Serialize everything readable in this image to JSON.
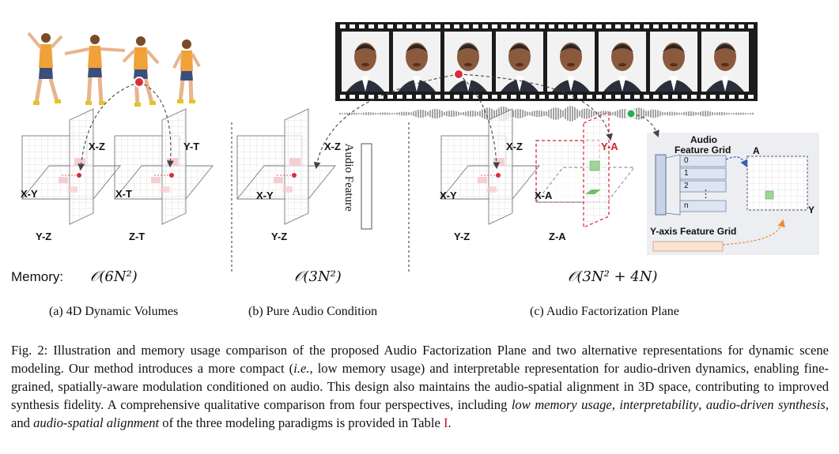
{
  "panels": {
    "a": {
      "caption": "(a) 4D Dynamic Volumes",
      "memory_label": "Memory:",
      "memory_formula": "𝒪(6N²)",
      "plane_labels": [
        "X-Z",
        "X-Y",
        "Y-Z",
        "Y-T",
        "X-T",
        "Z-T"
      ]
    },
    "b": {
      "caption": "(b) Pure Audio Condition",
      "memory_formula": "𝒪(3N²)",
      "plane_labels": [
        "X-Z",
        "X-Y",
        "Y-Z"
      ],
      "audio_feature_label": "Audio Feature"
    },
    "c": {
      "caption": "(c) Audio Factorization Plane",
      "memory_formula": "𝒪(3N² + 4N)",
      "plane_labels": [
        "X-Z",
        "X-Y",
        "Y-Z",
        "Y-A",
        "X-A",
        "Z-A"
      ],
      "inset": {
        "title_line1": "Audio",
        "title_line2": "Feature Grid",
        "grid_items": [
          "0",
          "1",
          "2",
          "⋮",
          "n"
        ],
        "axis_a": "A",
        "axis_y": "Y",
        "yaxis_title": "Y-axis Feature Grid"
      }
    }
  },
  "caption": {
    "fig_label": "Fig. 2:",
    "t1": " Illustration and memory usage comparison of the proposed Audio Factorization Plane and two alternative representations for dynamic scene modeling. Our method introduces a more compact (",
    "ie": "i.e.",
    "t2": ", low memory usage) and interpretable representation for audio-driven dynamics, enabling fine-grained, spatially-aware modulation conditioned on audio. This design also maintains the audio-spatial alignment in 3D space, contributing to improved synthesis fidelity. A comprehensive qualitative comparison from four perspectives, including ",
    "p1": "low memory usage",
    "sep1": ", ",
    "p2": "interpretability",
    "sep2": ", ",
    "p3": "audio-driven synthesis",
    "sep3": ", and ",
    "p4": "audio-spatial alignment",
    "t3": " of the three modeling paradigms is provided in Table ",
    "table_ref": "I",
    "t4": "."
  },
  "colors": {
    "accent_red": "#d92d3a",
    "accent_green": "#22b14c",
    "dash_red": "#d0202e",
    "dash_orange": "#f08a2a",
    "dash_blue": "#2f62b8",
    "inset_bg": "#eceef2"
  }
}
